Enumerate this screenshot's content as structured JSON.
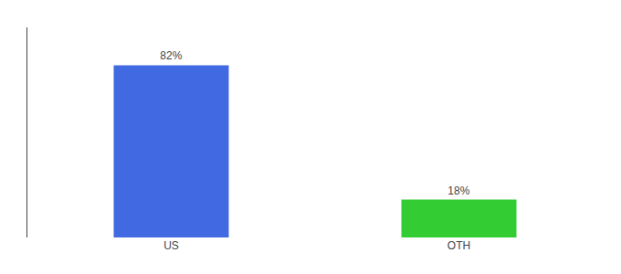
{
  "chart_data": {
    "type": "bar",
    "categories": [
      "US",
      "OTH"
    ],
    "values": [
      82,
      18
    ],
    "value_labels": [
      "82%",
      "18%"
    ],
    "colors": [
      "#4169e1",
      "#33cc33"
    ],
    "ylim": [
      0,
      100
    ],
    "tick_labels": "x",
    "data_labels": true,
    "grid": false
  }
}
